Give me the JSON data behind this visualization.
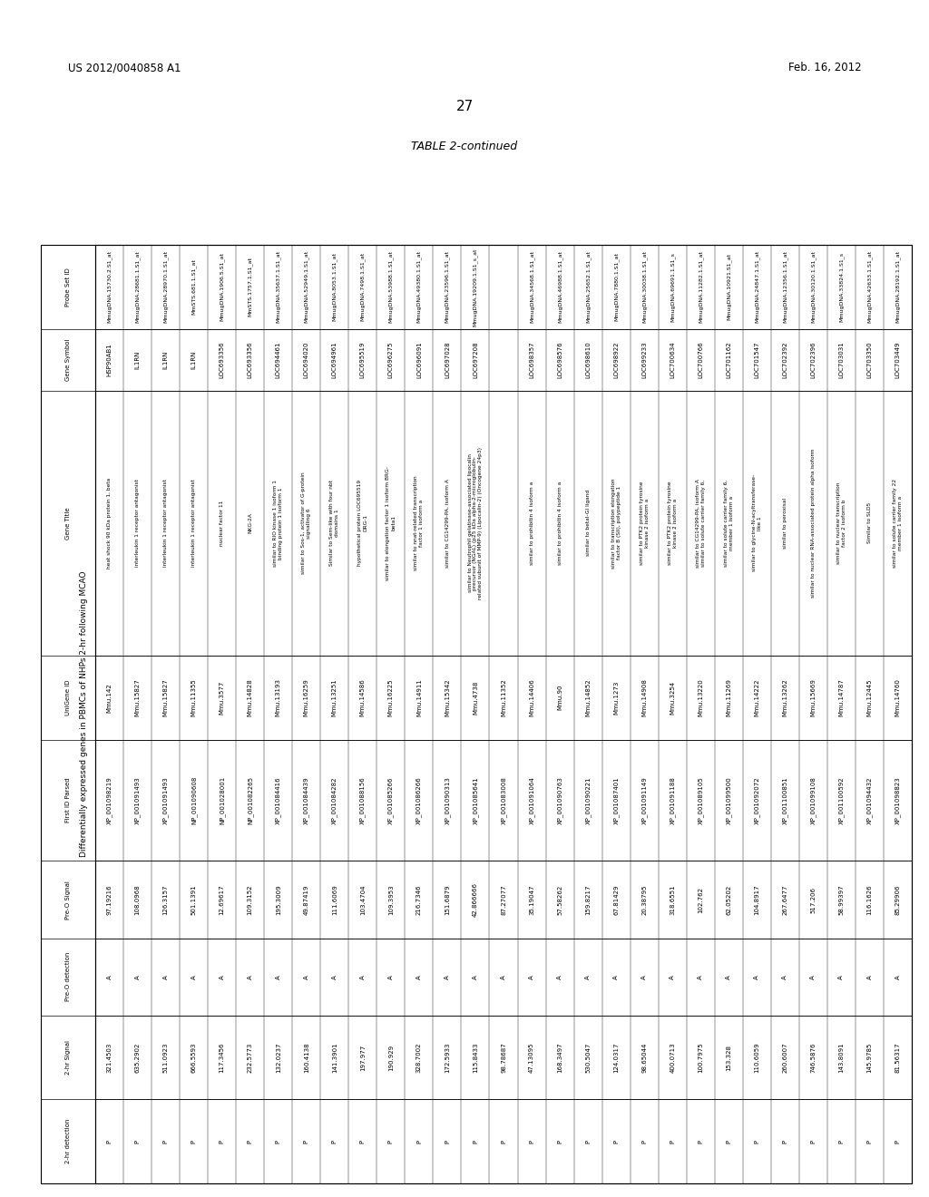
{
  "header_left": "US 2012/0040858 A1",
  "header_right": "Feb. 16, 2012",
  "page_number": "27",
  "table_title": "TABLE 2-continued",
  "table_subtitle": "Differentially expressed genes in PBMCs of NHPs 2-hr following MCAO",
  "col_headers": [
    "Probe Set ID",
    "Gene Symbol",
    "Gene Title",
    "UniGene ID",
    "First ID Parsed",
    "Pre-O Signal",
    "Pre-O detection",
    "2-hr Signal",
    "2-hr detection"
  ],
  "rows": [
    [
      "MmugDNA.15730.2.S1_at",
      "HSP90AB1",
      "heat shock 90 kDa protein 1, beta",
      "Mmu.142",
      "XP_001098219",
      "97.19216",
      "A",
      "321.4503",
      "P"
    ],
    [
      "MmugDNA.28681.1.S1_at",
      "IL1RN",
      "interleukin 1 receptor antagonist",
      "Mmu.15827",
      "XP_001091493",
      "108.0968",
      "A",
      "635.2902",
      "P"
    ],
    [
      "MmugDNA.28970.1.S1_at",
      "IL1RN",
      "interleukin 1 receptor antagonist",
      "Mmu.15827",
      "XP_001091493",
      "126.3157",
      "A",
      "511.0923",
      "P"
    ],
    [
      "MmSTS.681.1.S1_at",
      "IL1RN",
      "interleukin 1 receptor antagonist",
      "Mmu.11355",
      "NP_001090608",
      "501.1391",
      "A",
      "666.5593",
      "P"
    ],
    [
      "MmugDNA.1906.5.S1_at",
      "LOC693356",
      "nuclear factor 11",
      "Mmu.3577",
      "NP_001028001",
      "12.69617",
      "A",
      "117.3456",
      "P"
    ],
    [
      "MmSTS.1757.1.S1_at",
      "LOC693356",
      "NKG-2A",
      "Mmu.14828",
      "NP_001082265",
      "109.3152",
      "A",
      "232.5773",
      "P"
    ],
    [
      "MmugDNA.35637.1.S1_at",
      "LOC694461",
      "similar to RIO kinase 1 isoform 1\nbinding protein 1 isoform 1",
      "Mmu.13193",
      "XP_001084416",
      "195.3009",
      "A",
      "132.0237",
      "P"
    ],
    [
      "MmugDNA.52949.1.S1_at",
      "LOC694020",
      "similar to Sos-1, activator of G-protein\nsignalling 6",
      "Mmu.16259",
      "XP_001084439",
      "49.87419",
      "A",
      "160.4138",
      "P"
    ],
    [
      "MmugDNA.8053.1.S1_at",
      "LOC694961",
      "Similar to Sem-like with four nbt\ndomains 1",
      "Mmu.13251",
      "XP_001084282",
      "111.6069",
      "A",
      "141.3901",
      "P"
    ],
    [
      "MmugDNA.7498.1.S1_at",
      "LOC695519",
      "hypothetical protein LOC695519\nDRG-1",
      "Mmu.14586",
      "XP_001088156",
      "103.4704",
      "A",
      "197.977",
      "P"
    ],
    [
      "MmugDNA.53988.1.S1_at",
      "LOC696275",
      "similar to elongation factor 1 isoform BRG-\nbeta1",
      "Mmu.16225",
      "XF_001085266",
      "109.3953",
      "A",
      "190.929",
      "P"
    ],
    [
      "MmugDNA.49380.1.S1_at",
      "LOC696091",
      "similar to nnat-related transcription\nfactor 1 isoform a",
      "Mmu.14911",
      "XP_001086266",
      "216.7346",
      "A",
      "328.7002",
      "P"
    ],
    [
      "MmugDNA.23596.1.S1_at",
      "LOC697028",
      "similar to CG14299-PA, isoform A",
      "Mmu.15342",
      "XP_001090313",
      "151.6879",
      "A",
      "172.5933",
      "P"
    ],
    [
      "MmugDNA.19209.1.S1_s_at",
      "LOC697208",
      "similar to Neutrophil gelatinase-associated lipocalin\nprecursor (NGAL) (p25 kDa alpha-2-microglobulin-\nrelated subunit of MMP-9) (Lipocalin-2) (Oncogene 24p3)",
      "Mmu.4738",
      "XP_001085641",
      "42.866666",
      "A",
      "115.8433",
      "P"
    ],
    [
      "",
      "",
      "",
      "Mmu.11352",
      "XP_001083008",
      "87.27077",
      "A",
      "98.78687",
      "P"
    ],
    [
      "MmugDNA.34568.1.S1_at",
      "LOC698357",
      "similar to prohibitin 4 isoform a",
      "Mmu.14406",
      "XP_001091064",
      "35.19047",
      "A",
      "47.13095",
      "P"
    ],
    [
      "MmugDNA.46988.1.S1_at",
      "LOC698576",
      "similar to prohibitin 4 isoform a",
      "Mmu.90",
      "XP_001090763",
      "57.58262",
      "A",
      "168.3497",
      "P"
    ],
    [
      "MmugDNA.25652.1.S1_at",
      "LOC698610",
      "similar to betaI-GI ligand",
      "Mmu.14852",
      "XP_001090221",
      "159.8217",
      "A",
      "530.5047",
      "P"
    ],
    [
      "MmugDNA.7880.1.S1_at",
      "LOC698922",
      "similar to transcription elongation\nfactor B (SII), polypeptide 1",
      "Mmu.1273",
      "XP_001087401",
      "67.81429",
      "A",
      "124.0317",
      "P"
    ],
    [
      "MmugDNA.30038.1.S1_at",
      "LOC699233",
      "similar to PTK2 protein tyrosine\nkinase 2 isoform a",
      "Mmu.14908",
      "XP_001091149",
      "20.38795",
      "A",
      "98.65044",
      "P"
    ],
    [
      "MmugDNA.69691.1.S1_s",
      "LOC700634",
      "similar to PTK2 protein tyrosine\nkinase 2 isoform a",
      "Mmu.3254",
      "XP_001091188",
      "318.6551",
      "A",
      "400.0713",
      "P"
    ],
    [
      "MmugDNA.11282.1.S1_at",
      "LOC700766",
      "similar to CG14299-PA, isoform A\nsimilar to solute carrier family 6,",
      "Mmu.13220",
      "XP_001089105",
      "102.762",
      "A",
      "100.7975",
      "P"
    ],
    [
      "MmugDNA.10921.S1_at",
      "LOC701162",
      "similar to solute carrier family 6,\nmember 1 isoform a",
      "Mmu.11269",
      "XP_001099500",
      "62.05202",
      "A",
      "153.328",
      "P"
    ],
    [
      "MmugDNA.24847.1.S1_at",
      "LOC701547",
      "similar to glycine-N-acyltransferase-\nlike 1",
      "Mmu.14222",
      "XP_001092072",
      "104.8917",
      "A",
      "110.6059",
      "P"
    ],
    [
      "MmugDNA.12356.1.S1_at",
      "LOC702392",
      "similar to peroxisal",
      "Mmu.13262",
      "XP_001100851",
      "267.6477",
      "A",
      "260.6007",
      "P"
    ],
    [
      "MmugDNA.30120.1.S1_at",
      "LOC702396",
      "similar to nuclear RNA-associated protein alpha isoform",
      "Mmu.15669",
      "XP_001099108",
      "517.206",
      "A",
      "746.5876",
      "P"
    ],
    [
      "MmugDNA.33824.1.S1_s",
      "LOC703031",
      "similar to nuclear transcription\nfactor 2 isoform b",
      "Mmu.14787",
      "XP_001100592",
      "58.99397",
      "A",
      "143.8091",
      "P"
    ],
    [
      "MmugDNA.42633.1.S1_at",
      "LOC703350",
      "Similar to SLD5",
      "Mmu.12445",
      "XP_001094432",
      "116.1626",
      "A",
      "145.9785",
      "P"
    ],
    [
      "MmugDNA.28192.1.S1_at",
      "LOC703449",
      "similar to solute carrier family 22\nmember 1 isoform a",
      "Mmu.14760",
      "XP_001098823",
      "85.29906",
      "A",
      "81.56317",
      "P"
    ]
  ]
}
